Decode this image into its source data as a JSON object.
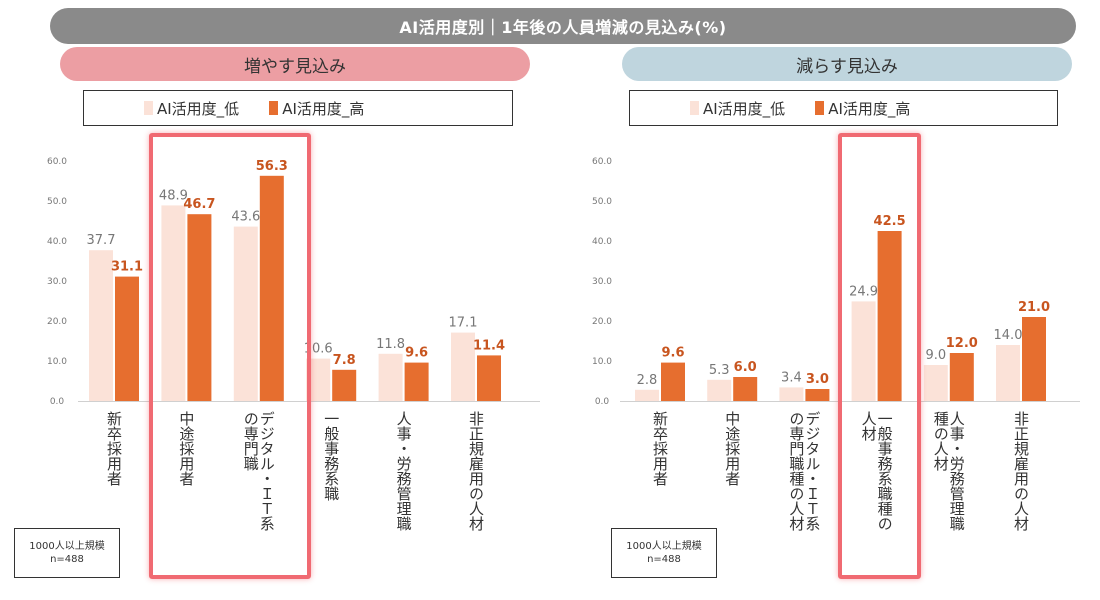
{
  "title": "AI活用度別｜1年後の人員増減の見込み(%)",
  "colors": {
    "low": "#fbe2d8",
    "high": "#e66e2f",
    "title_bg": "#8a8a8a",
    "increase_banner": "#ec9ea3",
    "decrease_banner": "#bfd5de",
    "highlight": "#f06a72"
  },
  "legend": {
    "low": "AI活用度_低",
    "high": "AI活用度_高"
  },
  "note": {
    "line1": "1000人以上規模",
    "line2": "n=488"
  },
  "chart_data": [
    {
      "type": "bar",
      "title": "増やす見込み",
      "categories": [
        "新卒採用者",
        "中途採用者",
        "デジタル・ＩＴ系の専門職",
        "一般事務系職",
        "人事・労務管理職",
        "非正規雇用の人材"
      ],
      "category_lines": [
        [
          "新卒採用者"
        ],
        [
          "中途採用者"
        ],
        [
          "デジタル・ＩＴ系",
          "の専門職"
        ],
        [
          "一般事務系職"
        ],
        [
          "人事・労務管理職"
        ],
        [
          "非正規雇用の人材"
        ]
      ],
      "series": [
        {
          "name": "AI活用度_低",
          "values": [
            37.7,
            48.9,
            43.6,
            10.6,
            11.8,
            17.1
          ]
        },
        {
          "name": "AI活用度_高",
          "values": [
            31.1,
            46.7,
            56.3,
            7.8,
            9.6,
            11.4
          ]
        }
      ],
      "value_labels": [
        [
          "37.7",
          "48.9",
          "43.6",
          "10.6",
          "11.8",
          "17.1"
        ],
        [
          "31.1",
          "46.7",
          "56.3",
          "7.8",
          "9.6",
          "11.4"
        ]
      ],
      "yticks": [
        "0.0",
        "10.0",
        "20.0",
        "30.0",
        "40.0",
        "50.0",
        "60.0"
      ],
      "ylim": [
        0,
        60
      ],
      "highlighted_categories": [
        "中途採用者",
        "デジタル・ＩＴ系の専門職"
      ]
    },
    {
      "type": "bar",
      "title": "減らす見込み",
      "categories": [
        "新卒採用者",
        "中途採用者",
        "デジタル・ＩＴ系の専門職種の人材",
        "一般事務系職種の人材",
        "人事・労務管理職種の人材",
        "非正規雇用の人材"
      ],
      "category_lines": [
        [
          "新卒採用者"
        ],
        [
          "中途採用者"
        ],
        [
          "デジタル・ＩＴ系",
          "の専門職種の人材"
        ],
        [
          "一般事務系職種の",
          "人材"
        ],
        [
          "人事・労務管理職",
          "種の人材"
        ],
        [
          "非正規雇用の人材"
        ]
      ],
      "series": [
        {
          "name": "AI活用度_低",
          "values": [
            2.8,
            5.3,
            3.4,
            24.9,
            9.0,
            14.0
          ]
        },
        {
          "name": "AI活用度_高",
          "values": [
            9.6,
            6.0,
            3.0,
            42.5,
            12.0,
            21.0
          ]
        }
      ],
      "value_labels": [
        [
          "2.8",
          "5.3",
          "3.4",
          "24.9",
          "9.0",
          "14.0"
        ],
        [
          "9.6",
          "6.0",
          "3.0",
          "42.5",
          "12.0",
          "21.0"
        ]
      ],
      "yticks": [
        "0.0",
        "10.0",
        "20.0",
        "30.0",
        "40.0",
        "50.0",
        "60.0"
      ],
      "ylim": [
        0,
        60
      ],
      "highlighted_categories": [
        "一般事務系職種の人材"
      ]
    }
  ]
}
